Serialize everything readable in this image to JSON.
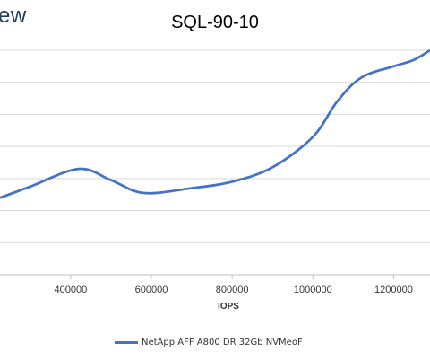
{
  "brand": "ew",
  "chart_data": {
    "type": "line",
    "title": "SQL-90-10",
    "xlabel": "IOPS",
    "ylabel": "",
    "x_ticks": [
      400000,
      600000,
      800000,
      1000000,
      1200000
    ],
    "x_tick_labels": [
      "400000",
      "600000",
      "800000",
      "1000000",
      "1200000"
    ],
    "xlim": [
      225000,
      1290000
    ],
    "ylim": [
      0,
      7
    ],
    "grid": true,
    "legend_position": "bottom",
    "series": [
      {
        "name": "NetApp AFF A800 DR 32Gb NVMeoF",
        "color": "#4472c4",
        "x": [
          225000,
          300000,
          420000,
          500000,
          580000,
          700000,
          800000,
          900000,
          1000000,
          1060000,
          1120000,
          1200000,
          1250000,
          1290000
        ],
        "y": [
          2.4,
          2.75,
          3.3,
          2.95,
          2.55,
          2.7,
          2.9,
          3.35,
          4.3,
          5.4,
          6.15,
          6.5,
          6.7,
          7.0
        ]
      }
    ]
  }
}
